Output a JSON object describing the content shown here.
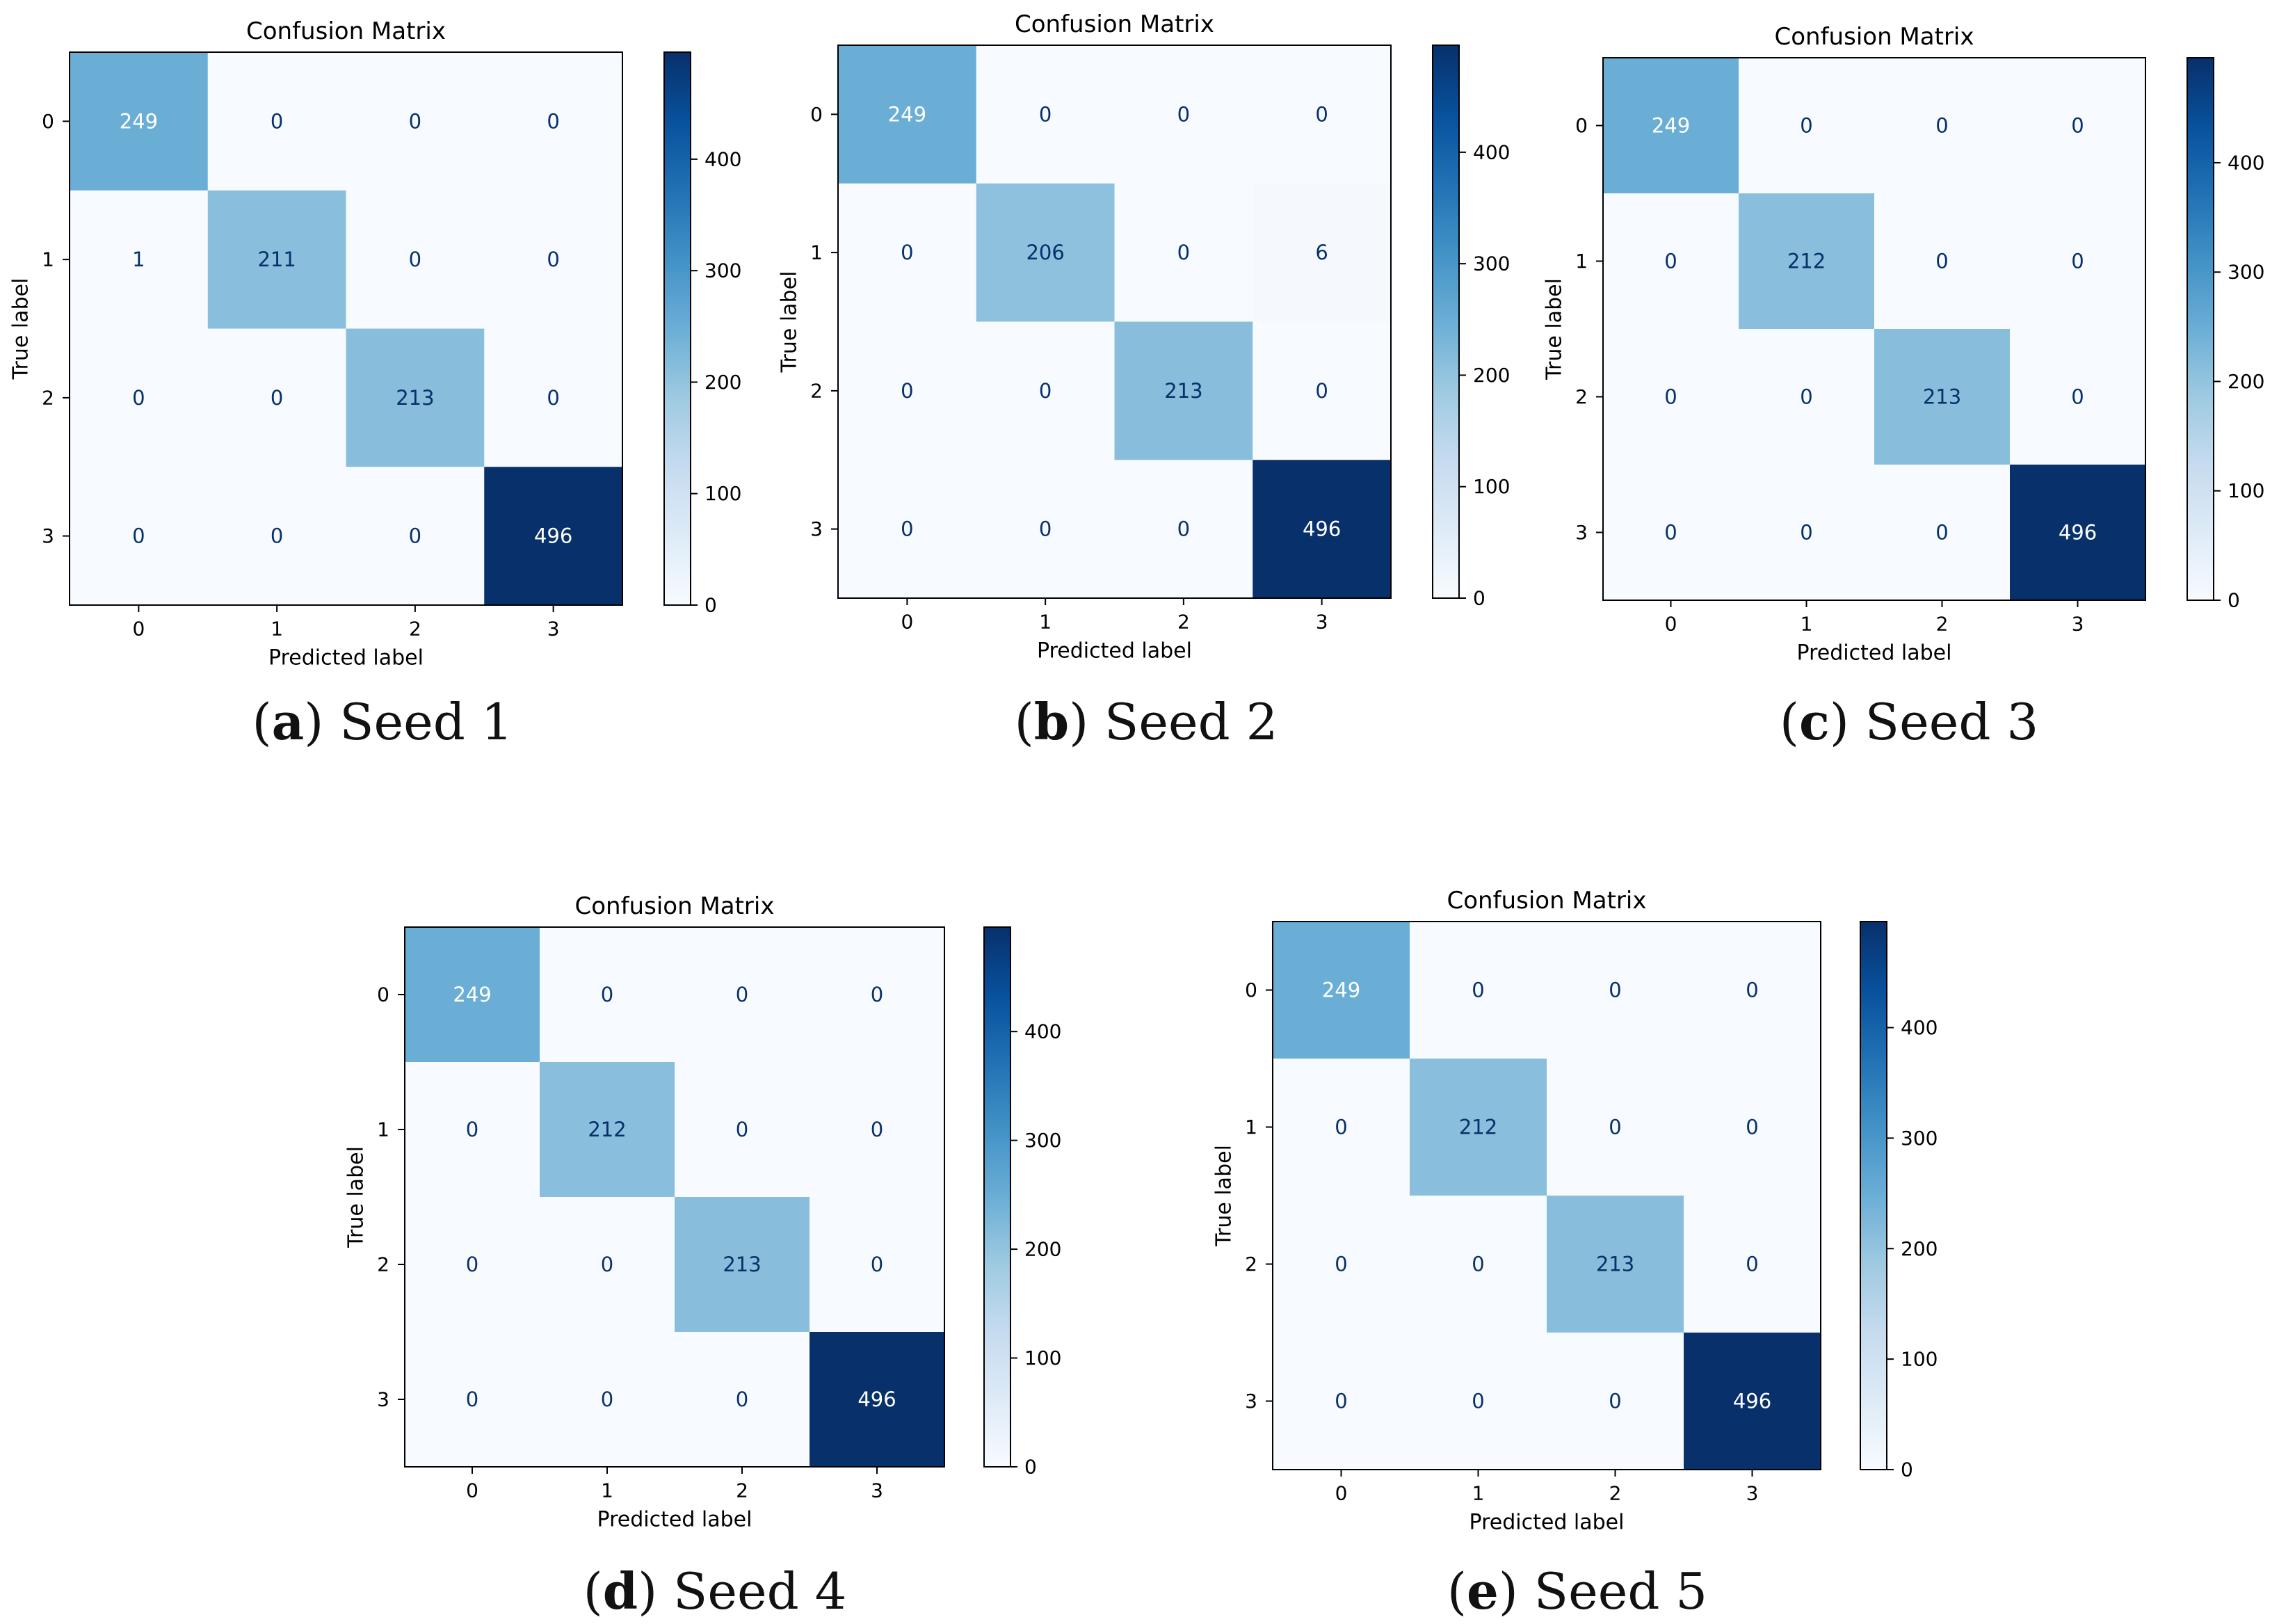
{
  "chart_data": [
    {
      "type": "heatmap",
      "title": "Confusion Matrix",
      "xlabel": "Predicted label",
      "ylabel": "True label",
      "x_ticks": [
        "0",
        "1",
        "2",
        "3"
      ],
      "y_ticks": [
        "0",
        "1",
        "2",
        "3"
      ],
      "values": [
        [
          249,
          0,
          0,
          0
        ],
        [
          1,
          211,
          0,
          0
        ],
        [
          0,
          0,
          213,
          0
        ],
        [
          0,
          0,
          0,
          496
        ]
      ],
      "colorbar_ticks": [
        "0",
        "100",
        "200",
        "300",
        "400"
      ],
      "colorbar_range": [
        0,
        496
      ],
      "colormap": "Blues",
      "caption": {
        "letter": "a",
        "text": "Seed 1"
      }
    },
    {
      "type": "heatmap",
      "title": "Confusion Matrix",
      "xlabel": "Predicted label",
      "ylabel": "True label",
      "x_ticks": [
        "0",
        "1",
        "2",
        "3"
      ],
      "y_ticks": [
        "0",
        "1",
        "2",
        "3"
      ],
      "values": [
        [
          249,
          0,
          0,
          0
        ],
        [
          0,
          206,
          0,
          6
        ],
        [
          0,
          0,
          213,
          0
        ],
        [
          0,
          0,
          0,
          496
        ]
      ],
      "colorbar_ticks": [
        "0",
        "100",
        "200",
        "300",
        "400"
      ],
      "colorbar_range": [
        0,
        496
      ],
      "colormap": "Blues",
      "caption": {
        "letter": "b",
        "text": "Seed 2"
      }
    },
    {
      "type": "heatmap",
      "title": "Confusion Matrix",
      "xlabel": "Predicted label",
      "ylabel": "True label",
      "x_ticks": [
        "0",
        "1",
        "2",
        "3"
      ],
      "y_ticks": [
        "0",
        "1",
        "2",
        "3"
      ],
      "values": [
        [
          249,
          0,
          0,
          0
        ],
        [
          0,
          212,
          0,
          0
        ],
        [
          0,
          0,
          213,
          0
        ],
        [
          0,
          0,
          0,
          496
        ]
      ],
      "colorbar_ticks": [
        "0",
        "100",
        "200",
        "300",
        "400"
      ],
      "colorbar_range": [
        0,
        496
      ],
      "colormap": "Blues",
      "caption": {
        "letter": "c",
        "text": "Seed 3"
      }
    },
    {
      "type": "heatmap",
      "title": "Confusion Matrix",
      "xlabel": "Predicted label",
      "ylabel": "True label",
      "x_ticks": [
        "0",
        "1",
        "2",
        "3"
      ],
      "y_ticks": [
        "0",
        "1",
        "2",
        "3"
      ],
      "values": [
        [
          249,
          0,
          0,
          0
        ],
        [
          0,
          212,
          0,
          0
        ],
        [
          0,
          0,
          213,
          0
        ],
        [
          0,
          0,
          0,
          496
        ]
      ],
      "colorbar_ticks": [
        "0",
        "100",
        "200",
        "300",
        "400"
      ],
      "colorbar_range": [
        0,
        496
      ],
      "colormap": "Blues",
      "caption": {
        "letter": "d",
        "text": "Seed 4"
      }
    },
    {
      "type": "heatmap",
      "title": "Confusion Matrix",
      "xlabel": "Predicted label",
      "ylabel": "True label",
      "x_ticks": [
        "0",
        "1",
        "2",
        "3"
      ],
      "y_ticks": [
        "0",
        "1",
        "2",
        "3"
      ],
      "values": [
        [
          249,
          0,
          0,
          0
        ],
        [
          0,
          212,
          0,
          0
        ],
        [
          0,
          0,
          213,
          0
        ],
        [
          0,
          0,
          0,
          496
        ]
      ],
      "colorbar_ticks": [
        "0",
        "100",
        "200",
        "300",
        "400"
      ],
      "colorbar_range": [
        0,
        496
      ],
      "colormap": "Blues",
      "caption": {
        "letter": "e",
        "text": "Seed 5"
      }
    }
  ]
}
